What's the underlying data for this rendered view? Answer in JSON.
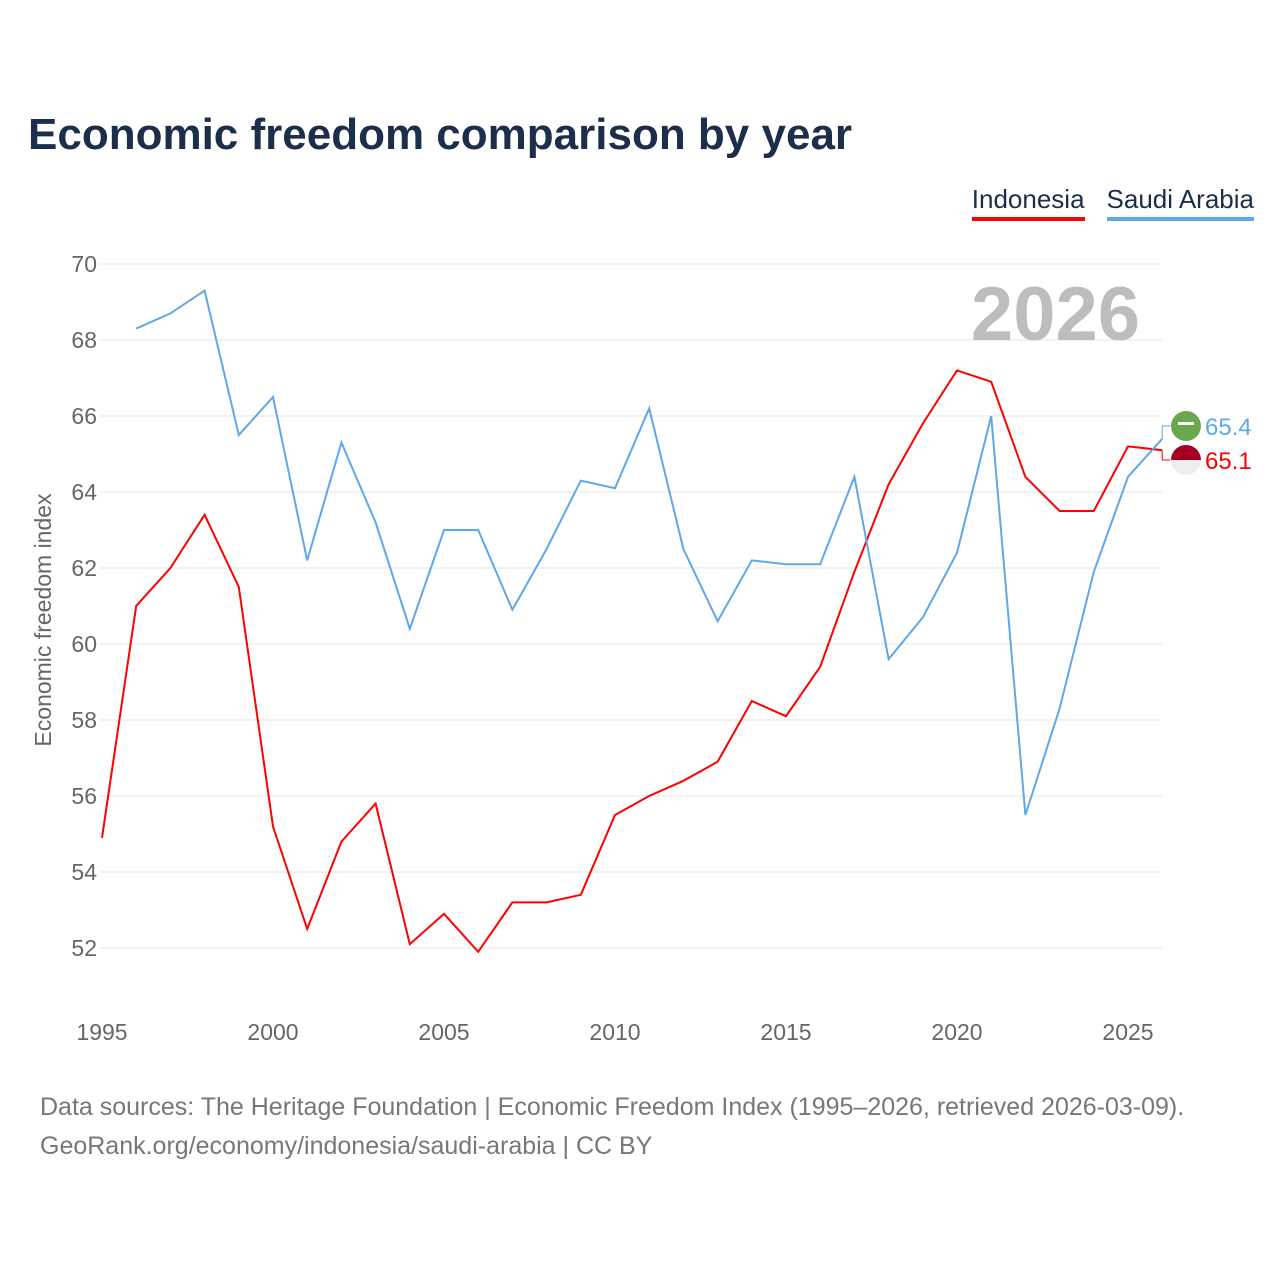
{
  "chart_data": {
    "type": "line",
    "title": "Economic freedom comparison by year",
    "xlabel": "",
    "ylabel": "Economic freedom index",
    "xlim": [
      1995,
      2026
    ],
    "ylim": [
      52,
      70
    ],
    "yticks": [
      70,
      68,
      66,
      64,
      62,
      60,
      58,
      56,
      54,
      52
    ],
    "xticks": [
      1995,
      2000,
      2005,
      2010,
      2015,
      2020,
      2025
    ],
    "grid": true,
    "legend_placement": "top-right",
    "year_watermark": "2026",
    "series": [
      {
        "name": "Indonesia",
        "color": "#ff0000",
        "end_label": "65.1",
        "x": [
          1995,
          1996,
          1997,
          1998,
          1999,
          2000,
          2001,
          2002,
          2003,
          2004,
          2005,
          2006,
          2007,
          2008,
          2009,
          2010,
          2011,
          2012,
          2013,
          2014,
          2015,
          2016,
          2017,
          2018,
          2019,
          2020,
          2021,
          2022,
          2023,
          2024,
          2025,
          2026
        ],
        "values": [
          54.9,
          61.0,
          62.0,
          63.4,
          61.5,
          55.2,
          52.5,
          54.8,
          55.8,
          52.1,
          52.9,
          51.9,
          53.2,
          53.2,
          53.4,
          55.5,
          56.0,
          56.4,
          56.9,
          58.5,
          58.1,
          59.4,
          61.9,
          64.2,
          65.8,
          67.2,
          66.9,
          64.4,
          63.5,
          63.5,
          65.2,
          65.1
        ]
      },
      {
        "name": "Saudi Arabia",
        "color": "#5fa8e8",
        "end_label": "65.4",
        "x": [
          1996,
          1997,
          1998,
          1999,
          2000,
          2001,
          2002,
          2003,
          2004,
          2005,
          2006,
          2007,
          2008,
          2009,
          2010,
          2011,
          2012,
          2013,
          2014,
          2015,
          2016,
          2017,
          2018,
          2019,
          2020,
          2021,
          2022,
          2023,
          2024,
          2025,
          2026
        ],
        "values": [
          68.3,
          68.7,
          69.3,
          65.5,
          66.5,
          62.2,
          65.3,
          63.2,
          60.4,
          63.0,
          63.0,
          60.9,
          62.5,
          64.3,
          64.1,
          66.2,
          62.5,
          60.6,
          62.2,
          62.1,
          62.1,
          64.4,
          59.6,
          60.7,
          62.4,
          66.0,
          55.5,
          58.3,
          61.9,
          64.4,
          65.4
        ]
      }
    ]
  },
  "source": {
    "line1": "Data sources: The Heritage Foundation | Economic Freedom Index (1995–2026, retrieved 2026-03-09).",
    "line2": "GeoRank.org/economy/indonesia/saudi-arabia | CC BY"
  }
}
